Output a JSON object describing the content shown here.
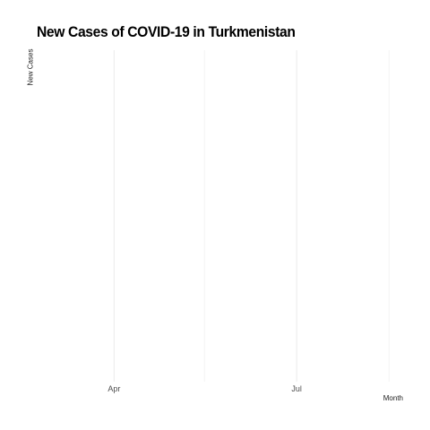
{
  "chart_data": {
    "type": "line",
    "title": "New Cases of COVID-19 in Turkmenistan",
    "xlabel": "Month",
    "ylabel": "New Cases",
    "x_ticks": [
      {
        "label": "Apr",
        "date": "2020-04-01",
        "major": true
      },
      {
        "label": "",
        "date": "2020-05-16",
        "major": false
      },
      {
        "label": "Jul",
        "date": "2020-07-01",
        "major": true
      },
      {
        "label": "",
        "date": "2020-08-16",
        "major": false
      }
    ],
    "xlim": [
      "2020-02-22",
      "2020-09-01"
    ],
    "series": [
      {
        "values": []
      }
    ],
    "grid": true,
    "legend": "none",
    "colors": {
      "grid": "#ebebeb",
      "tick_text": "#4d4d4d",
      "title": "#000000"
    }
  }
}
